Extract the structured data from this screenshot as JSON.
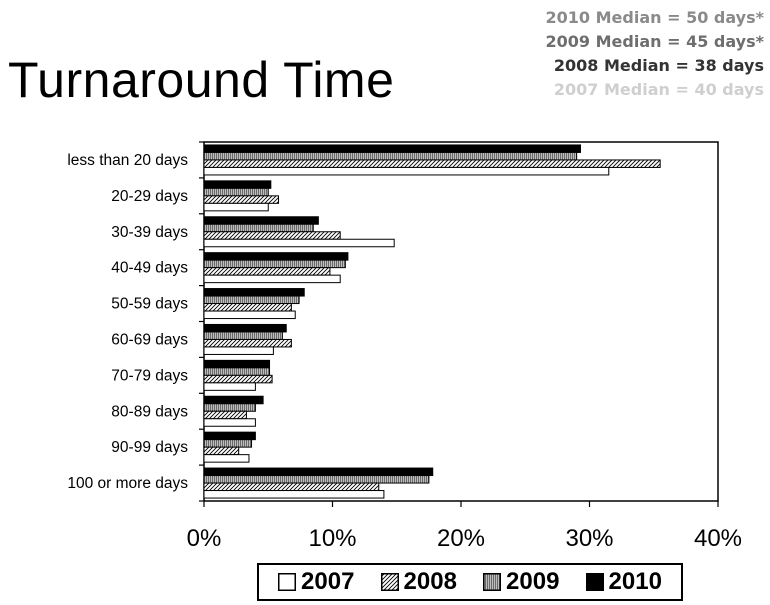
{
  "chart_data": {
    "type": "bar",
    "orientation": "horizontal",
    "title": "Turnaround Time",
    "medians": [
      {
        "text": "2010 Median = 50 days*",
        "color": "#8a8a8a"
      },
      {
        "text": "2009 Median = 45 days*",
        "color": "#6e6e6e"
      },
      {
        "text": "2008 Median = 38 days",
        "color": "#333333"
      },
      {
        "text": "2007 Median = 40 days",
        "color": "#cfcfcf"
      }
    ],
    "categories": [
      "less than 20 days",
      "20-29 days",
      "30-39 days",
      "40-49 days",
      "50-59 days",
      "60-69 days",
      "70-79 days",
      "80-89 days",
      "90-99 days",
      "100 or more days"
    ],
    "xlim": [
      0,
      40
    ],
    "xticks": [
      "0%",
      "10%",
      "20%",
      "30%",
      "40%"
    ],
    "grid": false,
    "legend_position": "bottom",
    "series": [
      {
        "name": "2007",
        "fill": "white",
        "values": [
          31.5,
          5.0,
          14.8,
          10.6,
          7.1,
          5.4,
          4.0,
          4.0,
          3.5,
          14.0
        ]
      },
      {
        "name": "2008",
        "fill": "hatched",
        "values": [
          35.5,
          5.8,
          10.6,
          9.8,
          6.8,
          6.8,
          5.3,
          3.3,
          2.7,
          13.6
        ]
      },
      {
        "name": "2009",
        "fill": "gray",
        "values": [
          29.0,
          5.0,
          8.5,
          11.0,
          7.4,
          6.1,
          5.1,
          4.0,
          3.7,
          17.5
        ]
      },
      {
        "name": "2010",
        "fill": "black",
        "values": [
          29.3,
          5.2,
          8.9,
          11.2,
          7.8,
          6.4,
          5.1,
          4.6,
          4.0,
          17.8
        ]
      }
    ]
  }
}
